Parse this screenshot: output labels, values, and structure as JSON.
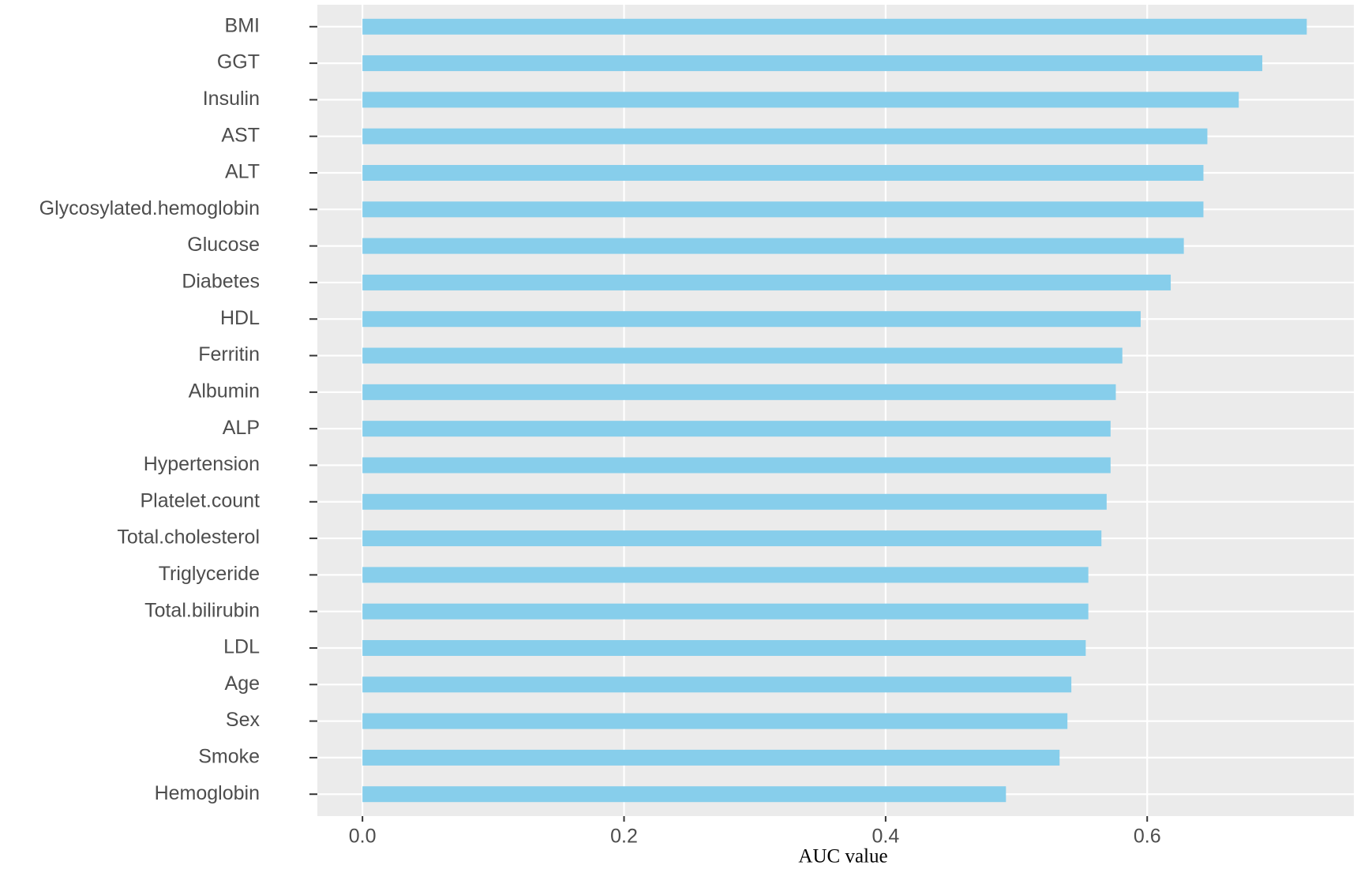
{
  "chart_data": {
    "type": "bar",
    "orientation": "horizontal",
    "x_label": "AUC value",
    "categories": [
      "BMI",
      "GGT",
      "Insulin",
      "AST",
      "ALT",
      "Glycosylated.hemoglobin",
      "Glucose",
      "Diabetes",
      "HDL",
      "Ferritin",
      "Albumin",
      "ALP",
      "Hypertension",
      "Platelet.count",
      "Total.cholesterol",
      "Triglyceride",
      "Total.bilirubin",
      "LDL",
      "Age",
      "Sex",
      "Smoke",
      "Hemoglobin"
    ],
    "values": [
      0.722,
      0.688,
      0.67,
      0.646,
      0.643,
      0.643,
      0.628,
      0.618,
      0.595,
      0.581,
      0.576,
      0.572,
      0.572,
      0.569,
      0.565,
      0.555,
      0.555,
      0.553,
      0.542,
      0.539,
      0.533,
      0.492
    ],
    "color": "#87ceeb",
    "xlim": [
      -0.0345,
      0.758
    ],
    "xticks": [
      {
        "value": 0,
        "label": "0.0"
      },
      0.2,
      0.4,
      0.6
    ],
    "grid": true
  }
}
